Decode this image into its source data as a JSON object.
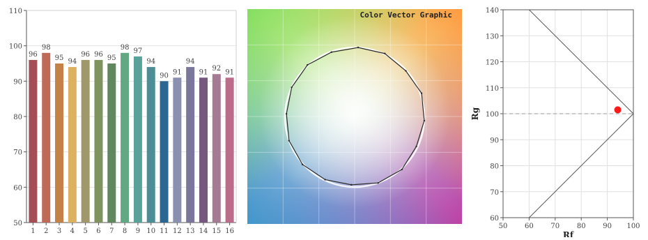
{
  "chart_data": [
    {
      "type": "bar",
      "categories": [
        "1",
        "2",
        "3",
        "4",
        "5",
        "6",
        "7",
        "8",
        "9",
        "10",
        "11",
        "12",
        "13",
        "14",
        "15",
        "16"
      ],
      "values": [
        96,
        98,
        95,
        94,
        96,
        96,
        95,
        98,
        97,
        94,
        90,
        91,
        94,
        91,
        92,
        91
      ],
      "colors": [
        "#a34f55",
        "#bd6a58",
        "#c58246",
        "#dcb160",
        "#a0976b",
        "#7f9360",
        "#5f8760",
        "#62a882",
        "#58a29a",
        "#4d8d96",
        "#2c6791",
        "#8a90b0",
        "#7a779a",
        "#76577f",
        "#a47b93",
        "#bb6c8a"
      ],
      "ylim": [
        50,
        110
      ],
      "yticks": [
        "50",
        "60",
        "70",
        "80",
        "90",
        "100",
        "110"
      ],
      "grid": true
    },
    {
      "type": "scatter",
      "title": "Color Vector Graphic",
      "description_of_marks": "closed polygon of 16 vertices on a hue-wheel background"
    },
    {
      "type": "scatter",
      "xlabel": "Rf",
      "ylabel": "Rg",
      "xlim": [
        50,
        100
      ],
      "ylim": [
        60,
        140
      ],
      "xticks": [
        "50",
        "60",
        "70",
        "80",
        "90",
        "100"
      ],
      "yticks": [
        "60",
        "70",
        "80",
        "90",
        "100",
        "110",
        "120",
        "130",
        "140"
      ],
      "points": [
        {
          "x": 94,
          "y": 101.5
        }
      ],
      "point_color": "#ff1a1a",
      "reference_line_y": 100,
      "grid": true
    }
  ]
}
